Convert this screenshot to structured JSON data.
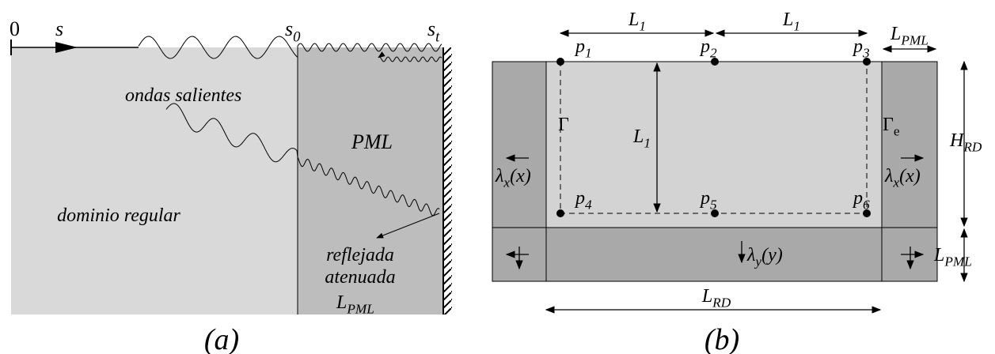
{
  "panel_a": {
    "origin": "0",
    "s": "s",
    "s0": {
      "base": "s",
      "sub": "0"
    },
    "st": {
      "base": "s",
      "sub": "t"
    },
    "outgoing": "ondas salientes",
    "pml": "PML",
    "regular": "dominio regular",
    "reflected": [
      "reflejada",
      "atenuada"
    ],
    "l_pml": {
      "base": "L",
      "sub": "PML"
    },
    "caption": "(a)"
  },
  "panel_b": {
    "l1_top_left": {
      "base": "L",
      "sub": "1"
    },
    "l1_top_right": {
      "base": "L",
      "sub": "1"
    },
    "l1_vertical": {
      "base": "L",
      "sub": "1"
    },
    "l_pml_top": {
      "base": "L",
      "sub": "PML"
    },
    "l_pml_side": {
      "base": "L",
      "sub": "PML"
    },
    "h_rd": {
      "base": "H",
      "sub": "RD"
    },
    "l_rd": {
      "base": "L",
      "sub": "RD"
    },
    "points": [
      {
        "base": "p",
        "sub": "1"
      },
      {
        "base": "p",
        "sub": "2"
      },
      {
        "base": "p",
        "sub": "3"
      },
      {
        "base": "p",
        "sub": "4"
      },
      {
        "base": "p",
        "sub": "5"
      },
      {
        "base": "p",
        "sub": "6"
      }
    ],
    "gamma": "Γ",
    "gamma_e": {
      "base": "Γ",
      "sub": "e"
    },
    "lambda_left": {
      "base": "λ",
      "sub": "x",
      "tail": "(x)"
    },
    "lambda_right": {
      "base": "λ",
      "sub": "x",
      "tail": "(x)"
    },
    "lambda_y": {
      "base": "λ",
      "sub": "y",
      "tail": "(y)"
    },
    "caption": "(b)"
  }
}
